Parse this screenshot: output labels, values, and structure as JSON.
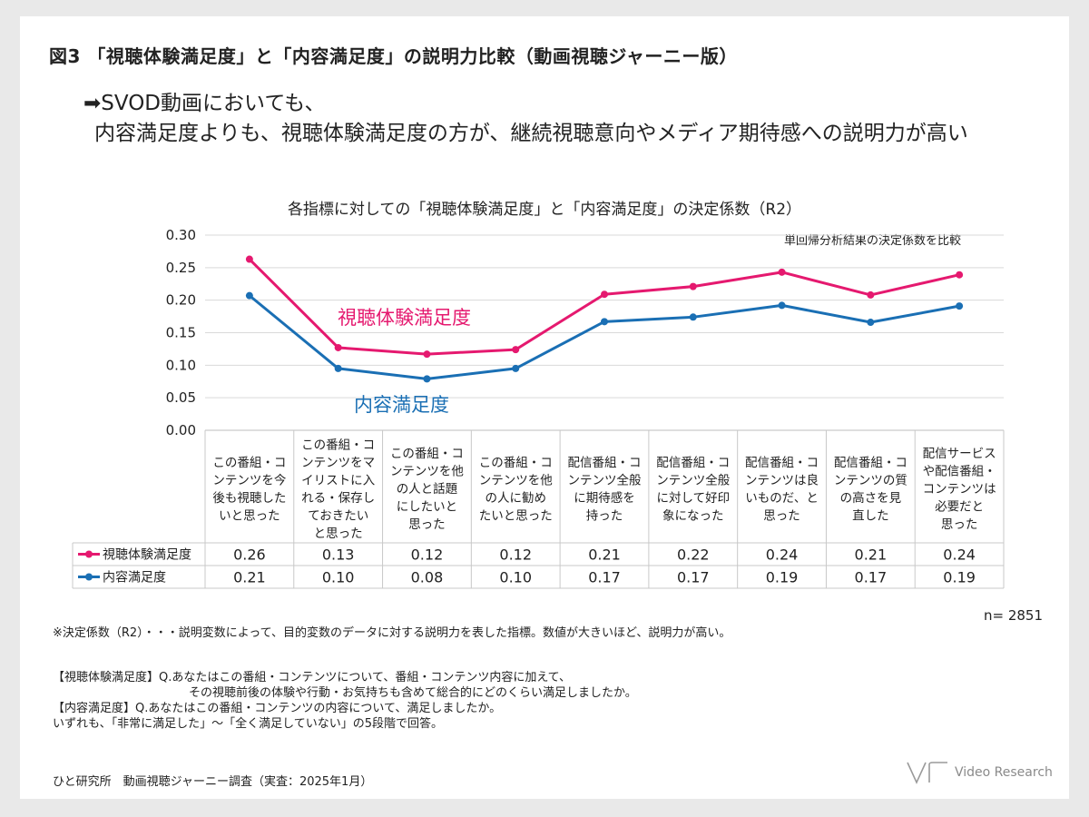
{
  "figure_title": "図3 「視聴体験満足度」と「内容満足度」の説明力比較（動画視聴ジャーニー版）",
  "headline": {
    "line1": "➡SVOD動画においても、",
    "line2": "内容満足度よりも、視聴体験満足度の方が、継続視聴意向やメディア期待感への説明力が高い"
  },
  "chart_data": {
    "type": "line",
    "title": "各指標に対しての「視聴体験満足度」と「内容満足度」の決定係数（R2）",
    "note": "単回帰分析結果の決定係数を比較",
    "ylim": [
      0,
      0.3
    ],
    "yticks": [
      "0.00",
      "0.05",
      "0.10",
      "0.15",
      "0.20",
      "0.25",
      "0.30"
    ],
    "grid": true,
    "categories": [
      [
        "この番組・コ",
        "ンテンツを今",
        "後も視聴した",
        "いと思った"
      ],
      [
        "この番組・コ",
        "ンテンツをマ",
        "イリストに入",
        "れる・保存し",
        "ておきたい",
        "と思った"
      ],
      [
        "この番組・コ",
        "ンテンツを他",
        "の人と話題",
        "にしたいと",
        "思った"
      ],
      [
        "この番組・コ",
        "ンテンツを他",
        "の人に勧め",
        "たいと思った"
      ],
      [
        "配信番組・コ",
        "ンテンツ全般",
        "に期待感を",
        "持った"
      ],
      [
        "配信番組・コ",
        "ンテンツ全般",
        "に対して好印",
        "象になった"
      ],
      [
        "配信番組・コ",
        "ンテンツは良",
        "いものだ、と",
        "思った"
      ],
      [
        "配信番組・コ",
        "ンテンツの質",
        "の高さを見",
        "直した"
      ],
      [
        "配信サービス",
        "や配信番組・",
        "コンテンツは",
        "必要だと",
        "思った"
      ]
    ],
    "series": [
      {
        "name": "視聴体験満足度",
        "color": "#e5196f",
        "values": [
          0.263,
          0.127,
          0.117,
          0.124,
          0.209,
          0.221,
          0.243,
          0.208,
          0.239
        ],
        "labels": [
          "0.26",
          "0.13",
          "0.12",
          "0.12",
          "0.21",
          "0.22",
          "0.24",
          "0.21",
          "0.24"
        ]
      },
      {
        "name": "内容満足度",
        "color": "#1a6fb4",
        "values": [
          0.207,
          0.095,
          0.079,
          0.095,
          0.167,
          0.174,
          0.192,
          0.166,
          0.191
        ],
        "labels": [
          "0.21",
          "0.10",
          "0.08",
          "0.10",
          "0.17",
          "0.17",
          "0.19",
          "0.17",
          "0.19"
        ]
      }
    ],
    "annotations": [
      "視聴体験満足度",
      "内容満足度"
    ]
  },
  "n_label": "n= 2851",
  "footnotes": {
    "definition": "※決定係数（R2）・・・説明変数によって、目的変数のデータに対する説明力を表した指標。数値が大きいほど、説明力が高い。",
    "q1_line1": "【視聴体験満足度】Q.あなたはこの番組・コンテンツについて、番組・コンテンツ内容に加えて、",
    "q1_line2": "その視聴前後の体験や行動・お気持ちも含めて総合的にどのくらい満足しましたか。",
    "q2": "【内容満足度】Q.あなたはこの番組・コンテンツの内容について、満足しましたか。",
    "scale": "いずれも、「非常に満足した」〜「全く満足していない」の5段階で回答。"
  },
  "source": "ひと研究所　動画視聴ジャーニー調査（実査：2025年1月）",
  "logo": {
    "text": "Video Research",
    "color": "#9a9a9a"
  }
}
